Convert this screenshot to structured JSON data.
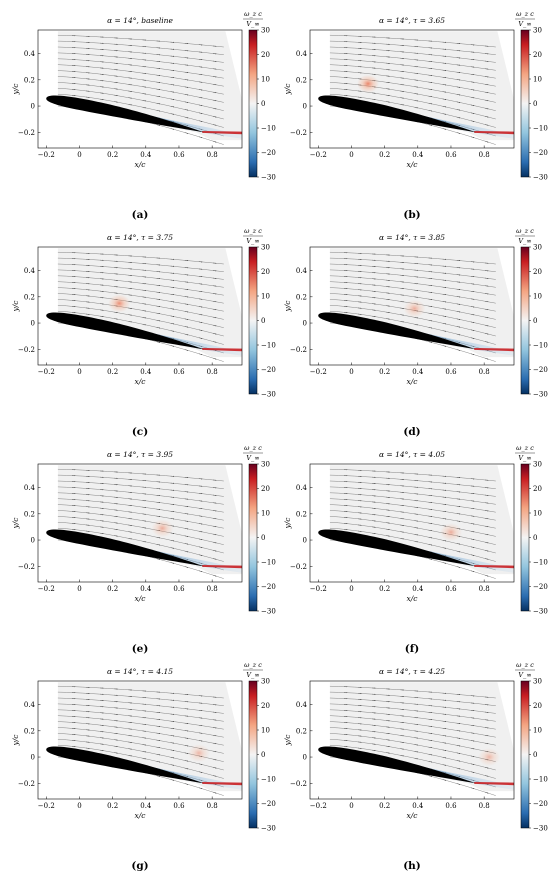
{
  "figure": {
    "colorbar": {
      "label_num": "ω_z c",
      "label_den": "V_∞",
      "ticks": [
        "30",
        "20",
        "10",
        "0",
        "−10",
        "−20",
        "−30"
      ],
      "vmin": -30,
      "vmax": 30,
      "colors": {
        "neg": "#2a6cb0",
        "zero": "#f4f4f4",
        "pos": "#c81e22"
      }
    },
    "axes": {
      "xlabel": "x/c",
      "ylabel": "y/c",
      "xticks": [
        "−0.2",
        "0",
        "0.2",
        "0.4",
        "0.6",
        "0.8"
      ],
      "yticks": [
        "0.4",
        "0.2",
        "0",
        "−0.2"
      ]
    },
    "panels": [
      {
        "label": "(a)",
        "title": "α = 14°, baseline"
      },
      {
        "label": "(b)",
        "title": "α = 14°, τ = 3.65"
      },
      {
        "label": "(c)",
        "title": "α = 14°, τ = 3.75"
      },
      {
        "label": "(d)",
        "title": "α = 14°, τ = 3.85"
      },
      {
        "label": "(e)",
        "title": "α = 14°, τ = 3.95"
      },
      {
        "label": "(f)",
        "title": "α = 14°, τ = 4.05"
      },
      {
        "label": "(g)",
        "title": "α = 14°, τ = 4.15"
      },
      {
        "label": "(h)",
        "title": "α = 14°, τ = 4.25"
      }
    ]
  },
  "chart_data": {
    "type": "heatmap",
    "xlim": [
      -0.25,
      0.98
    ],
    "ylim": [
      -0.32,
      0.58
    ],
    "airfoil": {
      "leading_edge": [
        -0.2,
        0.06
      ],
      "trailing_edge": [
        0.75,
        -0.2
      ],
      "thickness": 0.06
    },
    "panels": [
      {
        "tau": null,
        "vortex": null
      },
      {
        "tau": 3.65,
        "vortex": {
          "x": 0.1,
          "y": 0.17,
          "strength": 0.55
        }
      },
      {
        "tau": 3.75,
        "vortex": {
          "x": 0.24,
          "y": 0.15,
          "strength": 0.5
        }
      },
      {
        "tau": 3.85,
        "vortex": {
          "x": 0.38,
          "y": 0.11,
          "strength": 0.35
        }
      },
      {
        "tau": 3.95,
        "vortex": {
          "x": 0.5,
          "y": 0.09,
          "strength": 0.35
        }
      },
      {
        "tau": 4.05,
        "vortex": {
          "x": 0.6,
          "y": 0.06,
          "strength": 0.35
        }
      },
      {
        "tau": 4.15,
        "vortex": {
          "x": 0.72,
          "y": 0.03,
          "strength": 0.3
        }
      },
      {
        "tau": 4.25,
        "vortex": {
          "x": 0.83,
          "y": 0.0,
          "strength": 0.3
        }
      }
    ]
  }
}
